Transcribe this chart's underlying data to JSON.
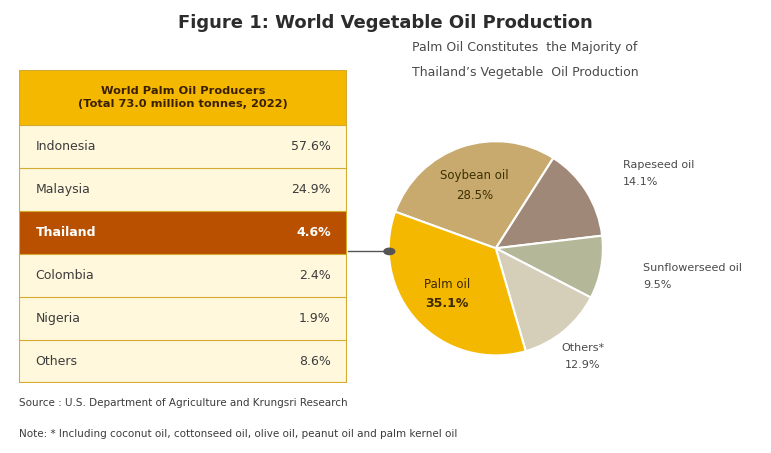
{
  "title": "Figure 1: World Vegetable Oil Production",
  "pie_subtitle_line1": "Palm Oil Constitutes  the Majority of",
  "pie_subtitle_line2": "Thailand’s Vegetable  Oil Production",
  "pie_values": [
    28.5,
    14.1,
    9.5,
    12.9,
    35.1
  ],
  "pie_colors": [
    "#C8A96E",
    "#A08878",
    "#B5B898",
    "#D5CEB8",
    "#F5B800"
  ],
  "pie_labels_inner": [
    {
      "text": "Soybean oil",
      "pct": "28.5%",
      "bold_pct": false,
      "idx": 0
    },
    {
      "text": "Palm oil",
      "pct": "35.1%",
      "bold_pct": true,
      "idx": 4
    }
  ],
  "pie_labels_outer": [
    {
      "text": "Rapeseed oil",
      "pct": "14.1%",
      "idx": 1
    },
    {
      "text": "Sunflowerseed oil",
      "pct": "9.5%",
      "idx": 2
    },
    {
      "text": "Others*",
      "pct": "12.9%",
      "idx": 3
    }
  ],
  "pie_startangle": 160,
  "table_header_line1": "World Palm Oil Producers",
  "table_header_line2": "(Total 73.0 million tonnes, 2022)",
  "table_header_bg": "#F5B800",
  "table_highlight_bg": "#B85000",
  "table_highlight_color": "#FFFFFF",
  "table_row_bg": "#FFF8DC",
  "table_border_color": "#D4AA30",
  "table_countries": [
    "Indonesia",
    "Malaysia",
    "Thailand",
    "Colombia",
    "Nigeria",
    "Others"
  ],
  "table_values": [
    "57.6%",
    "24.9%",
    "4.6%",
    "2.4%",
    "1.9%",
    "8.6%"
  ],
  "table_highlight_row": 2,
  "source_text": "Source : U.S. Department of Agriculture and Krungsri Research",
  "note_text": "Note: * Including coconut oil, cottonseed oil, olive oil, peanut oil and palm kernel oil",
  "title_color": "#2C2C2C",
  "text_color": "#3C3C3C",
  "bg_color": "#FFFFFF",
  "arrow_color": "#555555"
}
